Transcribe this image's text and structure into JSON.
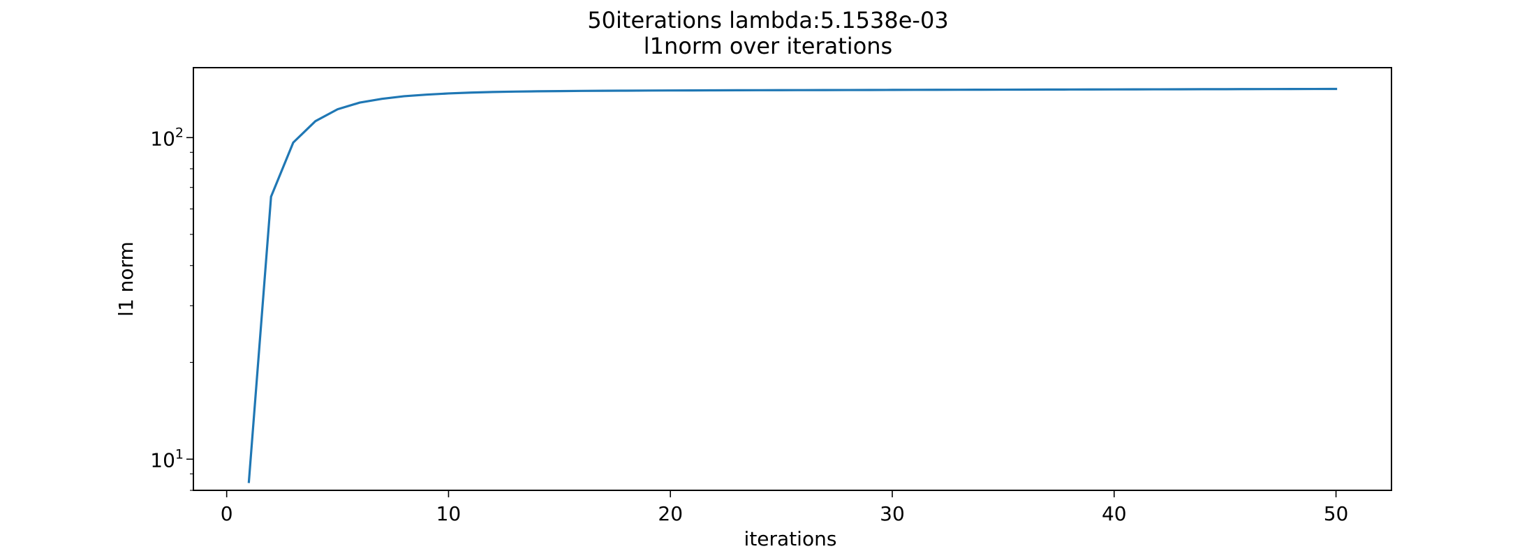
{
  "chart_data": {
    "type": "line",
    "title_line1": "50iterations lambda:5.1538e-03",
    "title_line2": "l1norm over iterations",
    "xlabel": "iterations",
    "ylabel": "l1 norm",
    "x_ticks": [
      "0",
      "10",
      "20",
      "30",
      "40",
      "50"
    ],
    "y_ticks": [
      {
        "value": 10,
        "base": "10",
        "exponent": "1"
      },
      {
        "value": 100,
        "base": "10",
        "exponent": "2"
      }
    ],
    "xlim": [
      -1.5,
      52.5
    ],
    "ylim": [
      8.0,
      165
    ],
    "y_scale": "log",
    "grid": false,
    "line_color": "#1f77b4",
    "series": [
      {
        "x": [
          1,
          2,
          3,
          4,
          5,
          6,
          7,
          8,
          9,
          10,
          11,
          12,
          13,
          14,
          15,
          16,
          17,
          18,
          19,
          20,
          21,
          22,
          23,
          24,
          25,
          26,
          27,
          28,
          29,
          30,
          31,
          32,
          33,
          34,
          35,
          36,
          37,
          38,
          39,
          40,
          41,
          42,
          43,
          44,
          45,
          46,
          47,
          48,
          49,
          50
        ],
        "values": [
          8.5,
          65.5,
          96.5,
          112.5,
          122.5,
          128.5,
          132.0,
          134.5,
          136.0,
          137.2,
          138.0,
          138.6,
          139.0,
          139.3,
          139.5,
          139.7,
          139.85,
          139.95,
          140.05,
          140.15,
          140.2,
          140.3,
          140.35,
          140.4,
          140.45,
          140.5,
          140.55,
          140.6,
          140.65,
          140.7,
          140.75,
          140.8,
          140.85,
          140.9,
          140.95,
          141.0,
          141.05,
          141.1,
          141.15,
          141.2,
          141.25,
          141.3,
          141.35,
          141.4,
          141.45,
          141.5,
          141.55,
          141.6,
          141.65,
          141.7
        ]
      }
    ]
  }
}
